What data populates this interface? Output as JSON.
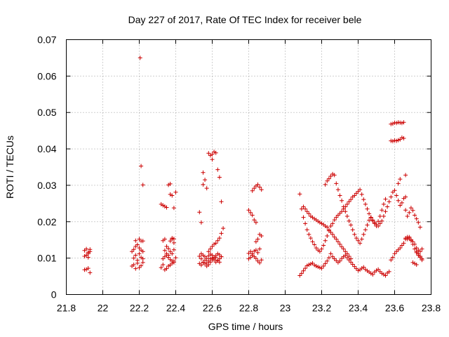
{
  "chart_data": {
    "type": "scatter",
    "title": "Day 227 of 2017, Rate Of TEC Index for receiver bele",
    "xlabel": "GPS time / hours",
    "ylabel": "ROTI / TECUs",
    "xlim": [
      21.8,
      23.8
    ],
    "ylim": [
      0,
      0.07
    ],
    "xticks": [
      "21.8",
      "22",
      "22.2",
      "22.4",
      "22.6",
      "22.8",
      "23",
      "23.2",
      "23.4",
      "23.6",
      "23.8"
    ],
    "yticks": [
      "0",
      "0.01",
      "0.02",
      "0.03",
      "0.04",
      "0.05",
      "0.06",
      "0.07"
    ],
    "grid": true,
    "marker": "plus",
    "color": "#cc0000",
    "series": [
      {
        "x": [
          21.9,
          21.91,
          21.92,
          21.93,
          21.9,
          21.91,
          21.92,
          21.93,
          21.9,
          21.91,
          21.92,
          21.93,
          21.92,
          22.16,
          22.17,
          22.18,
          22.19,
          22.2,
          22.21,
          22.22,
          22.17,
          22.18,
          22.19,
          22.2,
          22.21,
          22.22,
          22.16,
          22.17,
          22.18,
          22.19,
          22.2,
          22.21,
          22.22,
          22.18,
          22.2,
          22.22,
          22.21,
          22.205,
          22.22,
          22.21,
          22.32,
          22.33,
          22.34,
          22.35,
          22.36,
          22.37,
          22.38,
          22.39,
          22.4,
          22.33,
          22.34,
          22.35,
          22.36,
          22.37,
          22.38,
          22.39,
          22.34,
          22.35,
          22.36,
          22.37,
          22.38,
          22.39,
          22.32,
          22.33,
          22.34,
          22.35,
          22.37,
          22.38,
          22.36,
          22.37,
          22.38,
          22.39,
          22.4,
          22.39,
          22.33,
          22.34,
          22.35,
          22.36,
          22.37,
          22.38,
          22.39,
          22.53,
          22.54,
          22.55,
          22.56,
          22.57,
          22.58,
          22.59,
          22.6,
          22.61,
          22.62,
          22.63,
          22.64,
          22.54,
          22.55,
          22.56,
          22.57,
          22.58,
          22.59,
          22.6,
          22.61,
          22.62,
          22.63,
          22.64,
          22.65,
          22.53,
          22.54,
          22.55,
          22.56,
          22.57,
          22.58,
          22.59,
          22.6,
          22.61,
          22.62,
          22.63,
          22.64,
          22.65,
          22.58,
          22.59,
          22.6,
          22.61,
          22.62,
          22.63,
          22.64,
          22.65,
          22.66,
          22.6,
          22.61,
          22.62,
          22.63,
          22.64,
          22.65,
          22.55,
          22.56,
          22.57,
          22.53,
          22.54,
          22.55,
          22.58,
          22.59,
          22.6,
          22.8,
          22.81,
          22.82,
          22.83,
          22.84,
          22.85,
          22.86,
          22.87,
          22.8,
          22.81,
          22.82,
          22.83,
          22.84,
          22.85,
          22.86,
          22.87,
          22.8,
          22.81,
          22.82,
          22.83,
          22.84,
          22.82,
          22.83,
          22.84,
          22.85,
          22.86,
          22.87,
          22.84,
          22.85,
          22.86,
          23.08,
          23.09,
          23.1,
          23.11,
          23.12,
          23.13,
          23.14,
          23.15,
          23.16,
          23.17,
          23.18,
          23.19,
          23.2,
          23.21,
          23.22,
          23.23,
          23.24,
          23.25,
          23.26,
          23.27,
          23.28,
          23.29,
          23.3,
          23.31,
          23.32,
          23.33,
          23.34,
          23.35,
          23.36,
          23.37,
          23.38,
          23.39,
          23.4,
          23.41,
          23.42,
          23.43,
          23.44,
          23.45,
          23.46,
          23.47,
          23.48,
          23.49,
          23.5,
          23.51,
          23.52,
          23.53,
          23.54,
          23.55,
          23.56,
          23.57,
          23.58,
          23.59,
          23.6,
          23.61,
          23.62,
          23.63,
          23.64,
          23.65,
          23.66,
          23.67,
          23.68,
          23.69,
          23.7,
          23.71,
          23.72,
          23.73,
          23.74,
          23.75,
          23.08,
          23.09,
          23.1,
          23.11,
          23.12,
          23.13,
          23.14,
          23.15,
          23.16,
          23.17,
          23.18,
          23.19,
          23.2,
          23.21,
          23.22,
          23.23,
          23.24,
          23.25,
          23.26,
          23.27,
          23.28,
          23.29,
          23.3,
          23.31,
          23.32,
          23.33,
          23.34,
          23.35,
          23.36,
          23.37,
          23.38,
          23.39,
          23.4,
          23.41,
          23.42,
          23.43,
          23.44,
          23.45,
          23.46,
          23.47,
          23.48,
          23.49,
          23.5,
          23.51,
          23.52,
          23.53,
          23.54,
          23.55,
          23.22,
          23.23,
          23.24,
          23.25,
          23.26,
          23.27,
          23.28,
          23.29,
          23.3,
          23.31,
          23.32,
          23.33,
          23.34,
          23.35,
          23.36,
          23.37,
          23.38,
          23.39,
          23.4,
          23.41,
          23.42,
          23.43,
          23.44,
          23.45,
          23.46,
          23.47,
          23.1,
          23.11,
          23.12,
          23.13,
          23.14,
          23.15,
          23.16,
          23.17,
          23.18,
          23.19,
          23.2,
          23.21,
          23.22,
          23.23,
          23.24,
          23.25,
          23.26,
          23.27,
          23.28,
          23.29,
          23.3,
          23.31,
          23.32,
          23.33,
          23.34,
          23.35,
          23.36,
          23.47,
          23.48,
          23.49,
          23.5,
          23.51,
          23.52,
          23.53,
          23.54,
          23.55,
          23.56,
          23.57,
          23.58,
          23.59,
          23.6,
          23.61,
          23.62,
          23.63,
          23.64,
          23.65,
          23.66,
          23.67,
          23.68,
          23.69,
          23.7,
          23.71,
          23.72,
          23.73,
          23.74,
          23.66,
          23.67,
          23.68,
          23.69,
          23.7,
          23.71,
          23.72,
          23.73,
          23.74,
          23.75,
          23.72,
          23.73,
          23.74,
          23.75,
          23.7,
          23.71,
          23.72,
          23.58,
          23.59,
          23.6,
          23.61,
          23.62,
          23.63,
          23.64,
          23.65,
          23.58,
          23.59,
          23.6,
          23.61,
          23.62,
          23.63,
          23.64,
          23.65,
          23.66,
          23.63,
          23.62,
          23.66
        ],
        "y": [
          0.0068,
          0.0069,
          0.0072,
          0.006,
          0.0105,
          0.0108,
          0.0102,
          0.0118,
          0.0121,
          0.0125,
          0.0116,
          0.0124,
          0.0112,
          0.0078,
          0.0082,
          0.0071,
          0.0086,
          0.0074,
          0.0079,
          0.0088,
          0.01,
          0.0108,
          0.0094,
          0.0112,
          0.0102,
          0.0098,
          0.0118,
          0.0124,
          0.0132,
          0.0137,
          0.0128,
          0.0122,
          0.0118,
          0.0148,
          0.0152,
          0.0147,
          0.0353,
          0.065,
          0.0301,
          0.0147,
          0.0074,
          0.0082,
          0.0068,
          0.0071,
          0.0078,
          0.0081,
          0.0086,
          0.0092,
          0.0101,
          0.0098,
          0.0104,
          0.0112,
          0.0108,
          0.0118,
          0.0112,
          0.0123,
          0.0121,
          0.0132,
          0.0126,
          0.0147,
          0.0152,
          0.0142,
          0.0248,
          0.0245,
          0.0242,
          0.0239,
          0.0275,
          0.0272,
          0.0301,
          0.0304,
          0.0155,
          0.0153,
          0.0281,
          0.0238,
          0.0148,
          0.0152,
          0.0108,
          0.0102,
          0.0096,
          0.0092,
          0.0088,
          0.0105,
          0.0098,
          0.0088,
          0.0084,
          0.0078,
          0.0082,
          0.0089,
          0.0095,
          0.0098,
          0.0102,
          0.0094,
          0.0089,
          0.0112,
          0.0108,
          0.0104,
          0.0099,
          0.0106,
          0.0111,
          0.0108,
          0.0103,
          0.0107,
          0.0112,
          0.0109,
          0.0104,
          0.0085,
          0.0081,
          0.0089,
          0.0094,
          0.0087,
          0.0092,
          0.0098,
          0.0101,
          0.0095,
          0.0089,
          0.0093,
          0.0098,
          0.0104,
          0.0118,
          0.0125,
          0.0132,
          0.0138,
          0.0141,
          0.0148,
          0.0155,
          0.0168,
          0.0182,
          0.0385,
          0.0392,
          0.0389,
          0.0343,
          0.0322,
          0.0255,
          0.0335,
          0.0315,
          0.0292,
          0.0226,
          0.0198,
          0.0302,
          0.0388,
          0.0382,
          0.0371,
          0.0098,
          0.0102,
          0.0108,
          0.0104,
          0.0099,
          0.0092,
          0.0087,
          0.0095,
          0.0113,
          0.0118,
          0.0112,
          0.0119,
          0.0122,
          0.0115,
          0.0125,
          0.0161,
          0.0232,
          0.0225,
          0.0218,
          0.0205,
          0.0198,
          0.0285,
          0.0292,
          0.0298,
          0.0302,
          0.0295,
          0.0288,
          0.0145,
          0.0152,
          0.0165,
          0.0052,
          0.0058,
          0.0065,
          0.0072,
          0.0079,
          0.0082,
          0.0084,
          0.0086,
          0.0081,
          0.0078,
          0.0076,
          0.0074,
          0.0072,
          0.0078,
          0.0085,
          0.0092,
          0.0101,
          0.0112,
          0.0104,
          0.0098,
          0.0093,
          0.0088,
          0.0092,
          0.0099,
          0.0104,
          0.0108,
          0.0101,
          0.0095,
          0.0089,
          0.0083,
          0.0077,
          0.0071,
          0.0066,
          0.0068,
          0.0072,
          0.0075,
          0.0069,
          0.0065,
          0.0062,
          0.0058,
          0.0055,
          0.0062,
          0.0066,
          0.0069,
          0.0063,
          0.0058,
          0.0055,
          0.0052,
          0.0059,
          0.0063,
          0.0095,
          0.0102,
          0.0112,
          0.0118,
          0.0123,
          0.0128,
          0.0135,
          0.0141,
          0.0152,
          0.0158,
          0.0155,
          0.0148,
          0.0138,
          0.0125,
          0.0118,
          0.0112,
          0.0105,
          0.0095,
          0.0276,
          0.0235,
          0.0212,
          0.0195,
          0.0178,
          0.0165,
          0.0155,
          0.0145,
          0.0137,
          0.0128,
          0.0122,
          0.0118,
          0.0125,
          0.0135,
          0.0148,
          0.0161,
          0.0175,
          0.0188,
          0.0195,
          0.0205,
          0.0212,
          0.0218,
          0.0223,
          0.0228,
          0.0235,
          0.0241,
          0.0248,
          0.0255,
          0.0261,
          0.0268,
          0.0272,
          0.0278,
          0.0283,
          0.0288,
          0.0275,
          0.0261,
          0.0248,
          0.0235,
          0.0222,
          0.0211,
          0.0202,
          0.0195,
          0.0188,
          0.0201,
          0.0215,
          0.0232,
          0.0248,
          0.0262,
          0.0302,
          0.0312,
          0.0318,
          0.0325,
          0.0331,
          0.0328,
          0.0305,
          0.0288,
          0.0272,
          0.0258,
          0.0241,
          0.0228,
          0.0215,
          0.0202,
          0.0191,
          0.0178,
          0.0165,
          0.0155,
          0.0148,
          0.0141,
          0.0152,
          0.0165,
          0.0178,
          0.0191,
          0.0204,
          0.0212,
          0.0241,
          0.0235,
          0.0228,
          0.0222,
          0.0215,
          0.0212,
          0.0208,
          0.0205,
          0.0201,
          0.0198,
          0.0195,
          0.0192,
          0.0188,
          0.0185,
          0.0178,
          0.0171,
          0.0165,
          0.0158,
          0.0152,
          0.0145,
          0.0138,
          0.0131,
          0.0125,
          0.0118,
          0.0112,
          0.0105,
          0.0098,
          0.0212,
          0.0205,
          0.0198,
          0.0192,
          0.0188,
          0.0195,
          0.0202,
          0.0215,
          0.0228,
          0.0241,
          0.0255,
          0.0268,
          0.0281,
          0.0286,
          0.0272,
          0.0258,
          0.0245,
          0.0252,
          0.0264,
          0.0232,
          0.0215,
          0.0225,
          0.0238,
          0.0231,
          0.0218,
          0.0208,
          0.0198,
          0.0185,
          0.0155,
          0.0152,
          0.0158,
          0.0151,
          0.0145,
          0.0138,
          0.0128,
          0.0122,
          0.0118,
          0.0125,
          0.0115,
          0.0108,
          0.0102,
          0.0098,
          0.0088,
          0.0085,
          0.0082,
          0.0422,
          0.0421,
          0.0423,
          0.0422,
          0.0424,
          0.0426,
          0.0431,
          0.0429,
          0.0468,
          0.0469,
          0.0472,
          0.0471,
          0.0473,
          0.0472,
          0.0471,
          0.0473,
          0.0328,
          0.0317,
          0.0305,
          0.0268
        ]
      }
    ]
  }
}
